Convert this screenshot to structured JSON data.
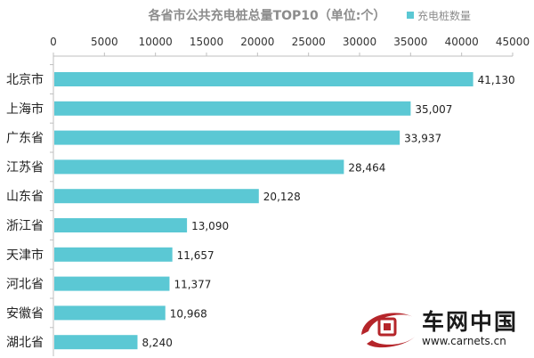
{
  "chart_data": {
    "type": "bar",
    "orientation": "horizontal",
    "title": "各省市公共充电桩总量TOP10（单位:个）",
    "categories": [
      "北京市",
      "上海市",
      "广东省",
      "江苏省",
      "山东省",
      "浙江省",
      "天津市",
      "河北省",
      "安徽省",
      "湖北省"
    ],
    "series": [
      {
        "name": "充电桩数量",
        "color": "#5bc8d4",
        "values": [
          41130,
          35007,
          33937,
          28464,
          20128,
          13090,
          11657,
          11377,
          10968,
          8240
        ],
        "labels": [
          "41,130",
          "35,007",
          "33,937",
          "28,464",
          "20,128",
          "13,090",
          "11,657",
          "11,377",
          "10,968",
          "8,240"
        ]
      }
    ],
    "xlim": [
      0,
      45000
    ],
    "xticks": [
      "0",
      "5000",
      "10000",
      "15000",
      "20000",
      "25000",
      "30000",
      "35000",
      "40000",
      "45000"
    ],
    "legend_position": "top-right",
    "grid": false
  },
  "watermark": {
    "brand_cn": "车网中国",
    "url": "www.carnets.cn"
  }
}
